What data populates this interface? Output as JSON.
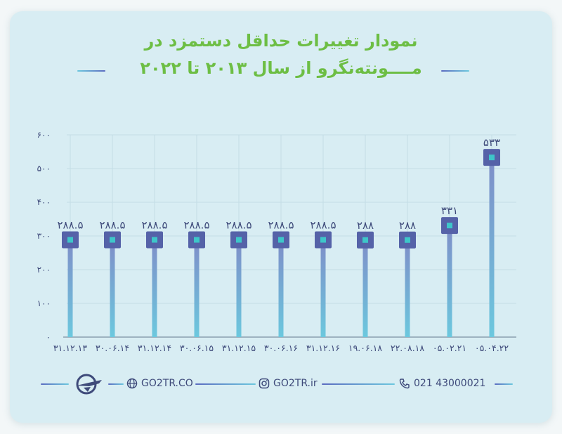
{
  "title": {
    "line1": "نمودار تغییرات حداقل دستمزد در",
    "line2": "مــــونته‌نگرو از سال ۲۰۱۳ تا ۲۰۲۲"
  },
  "colors": {
    "background": "#d8edf3",
    "title": "#6dbe44",
    "stem_top": "#7f8ec8",
    "stem_bottom": "#6cc8de",
    "marker_outer": "#5562a8",
    "marker_inner": "#3ec6c9",
    "text": "#3e4a7a"
  },
  "chart_data": {
    "type": "lollipop",
    "categories": [
      "۰۵.۰۴.۲۲",
      "۰۵.۰۲.۲۱",
      "۲۲.۰۸.۱۸",
      "۱۹.۰۶.۱۸",
      "۳۱.۱۲.۱۶",
      "۳۰.۰۶.۱۶",
      "۳۱.۱۲.۱۵",
      "۳۰.۰۶.۱۵",
      "۳۱.۱۲.۱۴",
      "۳۰.۰۶.۱۴",
      "۳۱.۱۲.۱۳"
    ],
    "values": [
      533,
      331,
      288,
      288,
      288.5,
      288.5,
      288.5,
      288.5,
      288.5,
      288.5,
      288.5
    ],
    "value_labels": [
      "۵۳۳",
      "۳۳۱",
      "۲۸۸",
      "۲۸۸",
      "۲۸۸.۵",
      "۲۸۸.۵",
      "۲۸۸.۵",
      "۲۸۸.۵",
      "۲۸۸.۵",
      "۲۸۸.۵",
      "۲۸۸.۵"
    ],
    "order": "right-to-left",
    "y_ticks": [
      0,
      100,
      200,
      300,
      400,
      500,
      600
    ],
    "y_tick_labels": [
      "۰",
      "۱۰۰",
      "۲۰۰",
      "۳۰۰",
      "۴۰۰",
      "۵۰۰",
      "۶۰۰"
    ],
    "ylim": [
      0,
      600
    ],
    "grid": true,
    "xlabel": "",
    "ylabel": ""
  },
  "footer": {
    "website": "GO2TR.CO",
    "instagram": "GO2TR.ir",
    "phone": "021 43000021",
    "icons": [
      "airplane-logo",
      "globe-icon",
      "instagram-icon",
      "phone-icon"
    ]
  }
}
